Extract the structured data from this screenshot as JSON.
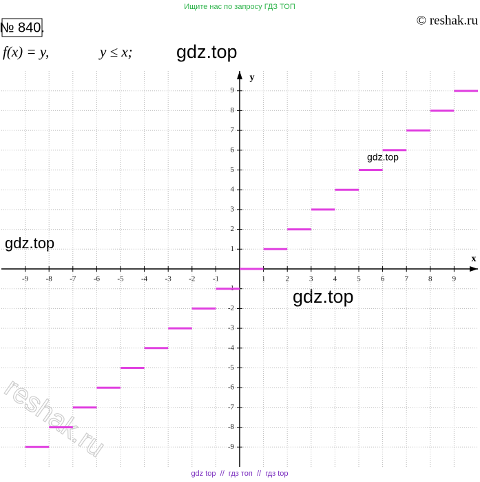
{
  "header": {
    "banner": "Ищите нас по запросу ГДЗ ТОП",
    "number": "№ 840.",
    "copyright": "© reshak.ru",
    "formula_left": "f(x) = y,",
    "formula_right": "y ≤ x;"
  },
  "watermarks": [
    "gdz.top",
    "gdz.top",
    "gdz.top",
    "gdz.top",
    "reshak.ru"
  ],
  "footer": "gdz top  //  гдз топ  //  гдз top",
  "chart_data": {
    "type": "segments",
    "x_label": "x",
    "y_label": "y",
    "color": "#e040e0",
    "x": [
      -9,
      -8,
      -7,
      -6,
      -5,
      -4,
      -3,
      -2,
      -1,
      0,
      1,
      2,
      3,
      4,
      5,
      6,
      7,
      8,
      9
    ],
    "x_end": [
      -8,
      -7,
      -6,
      -5,
      -4,
      -3,
      -2,
      -1,
      0,
      1,
      2,
      3,
      4,
      5,
      6,
      7,
      8,
      9,
      10
    ],
    "values": [
      -9,
      -8,
      -7,
      -6,
      -5,
      -4,
      -3,
      -2,
      -1,
      0,
      1,
      2,
      3,
      4,
      5,
      6,
      7,
      8,
      9
    ],
    "xlim": [
      -10,
      10
    ],
    "ylim": [
      -10,
      10
    ],
    "xticks": [
      -9,
      -8,
      -7,
      -6,
      -5,
      -4,
      -3,
      -2,
      -1,
      1,
      2,
      3,
      4,
      5,
      6,
      7,
      8,
      9
    ],
    "yticks": [
      -9,
      -8,
      -7,
      -6,
      -5,
      -4,
      -3,
      -2,
      -1,
      1,
      2,
      3,
      4,
      5,
      6,
      7,
      8,
      9
    ],
    "grid": true
  }
}
